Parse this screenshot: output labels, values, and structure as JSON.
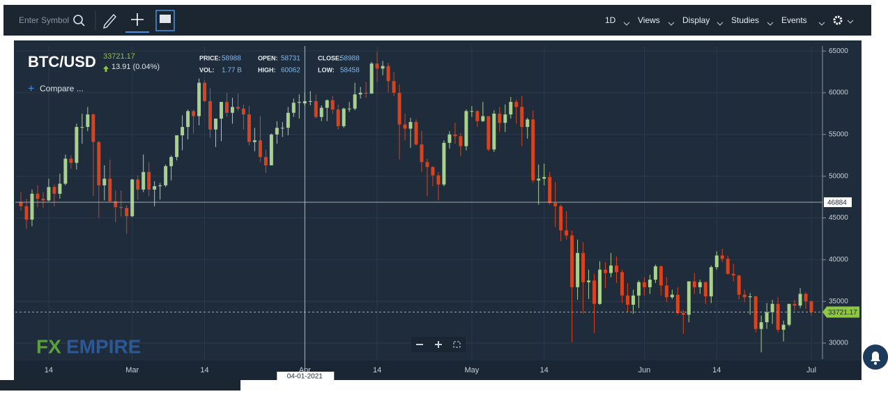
{
  "toolbar": {
    "search_placeholder": "Enter Symbol",
    "menus": [
      "1D",
      "Views",
      "Display",
      "Studies",
      "Events"
    ]
  },
  "chart_data": {
    "type": "candlestick",
    "title": "BTC/USD",
    "last_price": 33721.17,
    "change": "13.91 (0.04%)",
    "compare": "Compare ...",
    "logo": {
      "fx": "FX",
      "empire": "EMPIRE"
    },
    "info": [
      {
        "label": "PRICE:",
        "value": 58988
      },
      {
        "label": "VOL:",
        "value": "1.77 B"
      },
      {
        "label": "OPEN:",
        "value": 58731
      },
      {
        "label": "HIGH:",
        "value": 60062
      },
      {
        "label": "CLOSE:",
        "value": 58988
      },
      {
        "label": "LOW:",
        "value": 58458
      }
    ],
    "crosshair": {
      "x": "04-01-2021",
      "y": 46884
    },
    "up_color": "#a9d18e",
    "down_color": "#d8431f",
    "grid": true,
    "xlim": [
      "2021-02-08",
      "2021-07-03"
    ],
    "xticks": [
      {
        "value": "2021-02-14",
        "label": "14"
      },
      {
        "value": "2021-03-01",
        "label": "Mar"
      },
      {
        "value": "2021-03-14",
        "label": "14"
      },
      {
        "value": "2021-04-01",
        "label": "Apr"
      },
      {
        "value": "2021-04-14",
        "label": "14"
      },
      {
        "value": "2021-05-01",
        "label": "May"
      },
      {
        "value": "2021-05-14",
        "label": "14"
      },
      {
        "value": "2021-06-01",
        "label": "Jun"
      },
      {
        "value": "2021-06-14",
        "label": "14"
      },
      {
        "value": "2021-07-01",
        "label": "Jul"
      }
    ],
    "ylim": [
      28080,
      65600
    ],
    "yticks": [
      30000,
      35000,
      40000,
      45000,
      50000,
      55000,
      60000,
      65000
    ],
    "x": [
      "2021-02-09",
      "2021-02-10",
      "2021-02-11",
      "2021-02-12",
      "2021-02-13",
      "2021-02-14",
      "2021-02-15",
      "2021-02-16",
      "2021-02-17",
      "2021-02-18",
      "2021-02-19",
      "2021-02-20",
      "2021-02-21",
      "2021-02-22",
      "2021-02-23",
      "2021-02-24",
      "2021-02-25",
      "2021-02-26",
      "2021-02-27",
      "2021-02-28",
      "2021-03-01",
      "2021-03-02",
      "2021-03-03",
      "2021-03-04",
      "2021-03-05",
      "2021-03-06",
      "2021-03-07",
      "2021-03-08",
      "2021-03-09",
      "2021-03-10",
      "2021-03-11",
      "2021-03-12",
      "2021-03-13",
      "2021-03-14",
      "2021-03-15",
      "2021-03-16",
      "2021-03-17",
      "2021-03-18",
      "2021-03-19",
      "2021-03-20",
      "2021-03-21",
      "2021-03-22",
      "2021-03-23",
      "2021-03-24",
      "2021-03-25",
      "2021-03-26",
      "2021-03-27",
      "2021-03-28",
      "2021-03-29",
      "2021-03-30",
      "2021-03-31",
      "2021-04-01",
      "2021-04-02",
      "2021-04-03",
      "2021-04-04",
      "2021-04-05",
      "2021-04-06",
      "2021-04-07",
      "2021-04-08",
      "2021-04-09",
      "2021-04-10",
      "2021-04-11",
      "2021-04-12",
      "2021-04-13",
      "2021-04-14",
      "2021-04-15",
      "2021-04-16",
      "2021-04-17",
      "2021-04-18",
      "2021-04-19",
      "2021-04-20",
      "2021-04-21",
      "2021-04-22",
      "2021-04-23",
      "2021-04-24",
      "2021-04-25",
      "2021-04-26",
      "2021-04-27",
      "2021-04-28",
      "2021-04-29",
      "2021-04-30",
      "2021-05-01",
      "2021-05-02",
      "2021-05-03",
      "2021-05-04",
      "2021-05-05",
      "2021-05-06",
      "2021-05-07",
      "2021-05-08",
      "2021-05-09",
      "2021-05-10",
      "2021-05-11",
      "2021-05-12",
      "2021-05-13",
      "2021-05-14",
      "2021-05-15",
      "2021-05-16",
      "2021-05-17",
      "2021-05-18",
      "2021-05-19",
      "2021-05-20",
      "2021-05-21",
      "2021-05-22",
      "2021-05-23",
      "2021-05-24",
      "2021-05-25",
      "2021-05-26",
      "2021-05-27",
      "2021-05-28",
      "2021-05-29",
      "2021-05-30",
      "2021-05-31",
      "2021-06-01",
      "2021-06-02",
      "2021-06-03",
      "2021-06-04",
      "2021-06-05",
      "2021-06-06",
      "2021-06-07",
      "2021-06-08",
      "2021-06-09",
      "2021-06-10",
      "2021-06-11",
      "2021-06-12",
      "2021-06-13",
      "2021-06-14",
      "2021-06-15",
      "2021-06-16",
      "2021-06-17",
      "2021-06-18",
      "2021-06-19",
      "2021-06-20",
      "2021-06-21",
      "2021-06-22",
      "2021-06-23",
      "2021-06-24",
      "2021-06-25",
      "2021-06-26",
      "2021-06-27",
      "2021-06-28",
      "2021-06-29",
      "2021-06-30",
      "2021-07-01"
    ],
    "candles": [
      [
        46900,
        48100,
        45900,
        46400
      ],
      [
        46400,
        47300,
        43700,
        44800
      ],
      [
        44800,
        48400,
        44000,
        47900
      ],
      [
        47900,
        48900,
        46300,
        47300
      ],
      [
        47300,
        48100,
        46200,
        47100
      ],
      [
        47100,
        49700,
        47000,
        48700
      ],
      [
        48700,
        49000,
        46400,
        47900
      ],
      [
        47900,
        50300,
        47300,
        49100
      ],
      [
        49100,
        52600,
        48900,
        52100
      ],
      [
        52100,
        52500,
        50900,
        51600
      ],
      [
        51600,
        56300,
        50800,
        55900
      ],
      [
        55900,
        57500,
        53900,
        55900
      ],
      [
        55900,
        58300,
        55400,
        57400
      ],
      [
        57400,
        57500,
        47600,
        54100
      ],
      [
        54100,
        54200,
        45000,
        48900
      ],
      [
        48900,
        51300,
        47100,
        49700
      ],
      [
        49700,
        52000,
        46900,
        47000
      ],
      [
        47000,
        48300,
        44500,
        46300
      ],
      [
        46300,
        48300,
        45200,
        46200
      ],
      [
        46200,
        46500,
        43100,
        45200
      ],
      [
        45200,
        49700,
        45100,
        49600
      ],
      [
        49600,
        50100,
        47200,
        48400
      ],
      [
        48400,
        52600,
        48100,
        50500
      ],
      [
        50500,
        51700,
        47600,
        48400
      ],
      [
        48400,
        49400,
        46400,
        48800
      ],
      [
        48800,
        49200,
        47200,
        48900
      ],
      [
        48900,
        51400,
        48700,
        51200
      ],
      [
        51200,
        52500,
        49500,
        52300
      ],
      [
        52300,
        54900,
        51900,
        54900
      ],
      [
        54900,
        57300,
        53100,
        55900
      ],
      [
        55900,
        58000,
        54400,
        57800
      ],
      [
        57800,
        58000,
        55100,
        57200
      ],
      [
        57200,
        61700,
        56100,
        61200
      ],
      [
        61200,
        61500,
        58900,
        59000
      ],
      [
        59000,
        60500,
        54600,
        55600
      ],
      [
        55600,
        56900,
        53500,
        56900
      ],
      [
        56900,
        58900,
        54200,
        58900
      ],
      [
        58900,
        60000,
        57100,
        57600
      ],
      [
        57600,
        59400,
        56300,
        58300
      ],
      [
        58300,
        59900,
        57800,
        58100
      ],
      [
        58100,
        58600,
        55600,
        57400
      ],
      [
        57400,
        58400,
        53700,
        54100
      ],
      [
        54100,
        55800,
        53000,
        54300
      ],
      [
        54300,
        57200,
        51700,
        52300
      ],
      [
        52300,
        53200,
        50400,
        51300
      ],
      [
        51300,
        55100,
        51300,
        55000
      ],
      [
        55000,
        56600,
        53900,
        55800
      ],
      [
        55800,
        56500,
        54700,
        55800
      ],
      [
        55800,
        58300,
        54900,
        57600
      ],
      [
        57600,
        59300,
        57100,
        58800
      ],
      [
        58800,
        59800,
        56900,
        58900
      ],
      [
        58731,
        60062,
        58458,
        58988
      ],
      [
        58988,
        60200,
        58500,
        59000
      ],
      [
        59000,
        59800,
        56900,
        57100
      ],
      [
        57100,
        58500,
        56600,
        58200
      ],
      [
        58200,
        59200,
        56600,
        59100
      ],
      [
        59100,
        59600,
        57500,
        58000
      ],
      [
        58000,
        58600,
        55600,
        56000
      ],
      [
        56000,
        58200,
        55800,
        58100
      ],
      [
        58100,
        58900,
        57700,
        58100
      ],
      [
        58100,
        61200,
        57900,
        59800
      ],
      [
        59800,
        60700,
        59300,
        60000
      ],
      [
        60000,
        61300,
        59400,
        59900
      ],
      [
        59900,
        63700,
        59900,
        63500
      ],
      [
        63500,
        64900,
        61300,
        62900
      ],
      [
        62900,
        63800,
        62100,
        63200
      ],
      [
        63200,
        63600,
        60000,
        61400
      ],
      [
        61400,
        62500,
        59600,
        60000
      ],
      [
        60000,
        61000,
        52000,
        56200
      ],
      [
        56200,
        57500,
        54300,
        55700
      ],
      [
        55700,
        57000,
        53400,
        56500
      ],
      [
        56500,
        56800,
        53700,
        53800
      ],
      [
        53800,
        55400,
        50500,
        51700
      ],
      [
        51700,
        52100,
        47600,
        51100
      ],
      [
        51100,
        51200,
        48800,
        50100
      ],
      [
        50100,
        50500,
        47100,
        49000
      ],
      [
        49000,
        54300,
        48800,
        54000
      ],
      [
        54000,
        55400,
        53300,
        55000
      ],
      [
        55000,
        56400,
        53900,
        54800
      ],
      [
        54800,
        55200,
        52400,
        53600
      ],
      [
        53600,
        58000,
        53100,
        57800
      ],
      [
        57800,
        58400,
        57100,
        57800
      ],
      [
        57800,
        57900,
        55900,
        56600
      ],
      [
        56600,
        58900,
        56500,
        57200
      ],
      [
        57200,
        57200,
        53000,
        53200
      ],
      [
        53200,
        57900,
        52900,
        57500
      ],
      [
        57500,
        58300,
        55300,
        56400
      ],
      [
        56400,
        58600,
        55300,
        57400
      ],
      [
        57400,
        59500,
        56900,
        58900
      ],
      [
        58900,
        59200,
        56300,
        58300
      ],
      [
        58300,
        59600,
        53600,
        55900
      ],
      [
        55900,
        57000,
        54500,
        56800
      ],
      [
        56800,
        57900,
        49200,
        49500
      ],
      [
        49500,
        51400,
        46600,
        49700
      ],
      [
        49700,
        51500,
        48900,
        49900
      ],
      [
        49900,
        50500,
        46600,
        46800
      ],
      [
        46800,
        49300,
        43900,
        46400
      ],
      [
        46400,
        46600,
        42200,
        43500
      ],
      [
        43500,
        45800,
        42400,
        42900
      ],
      [
        42900,
        43500,
        30100,
        36700
      ],
      [
        36700,
        42400,
        35200,
        40800
      ],
      [
        40800,
        42100,
        33500,
        37300
      ],
      [
        37300,
        38800,
        35300,
        37500
      ],
      [
        37500,
        38300,
        31200,
        34700
      ],
      [
        34700,
        39800,
        34600,
        38800
      ],
      [
        38800,
        39700,
        36600,
        38400
      ],
      [
        38400,
        40800,
        37900,
        39300
      ],
      [
        39300,
        40400,
        37200,
        38500
      ],
      [
        38500,
        38800,
        34800,
        35700
      ],
      [
        35700,
        37200,
        33700,
        34600
      ],
      [
        34600,
        36400,
        33500,
        35700
      ],
      [
        35700,
        37500,
        34200,
        37300
      ],
      [
        37300,
        37900,
        35700,
        36700
      ],
      [
        36700,
        38200,
        35900,
        37600
      ],
      [
        37600,
        39400,
        37200,
        39200
      ],
      [
        39200,
        39300,
        35700,
        36900
      ],
      [
        36900,
        37900,
        34900,
        35500
      ],
      [
        35500,
        36400,
        35300,
        35800
      ],
      [
        35800,
        36700,
        33400,
        33600
      ],
      [
        33600,
        34000,
        31100,
        33400
      ],
      [
        33400,
        37400,
        32500,
        37400
      ],
      [
        37400,
        38400,
        35900,
        36700
      ],
      [
        36700,
        37600,
        35900,
        37300
      ],
      [
        37300,
        37400,
        34700,
        35600
      ],
      [
        35600,
        39300,
        34800,
        39100
      ],
      [
        39100,
        41000,
        38800,
        40500
      ],
      [
        40500,
        41300,
        39700,
        40100
      ],
      [
        40100,
        40500,
        38200,
        38300
      ],
      [
        38300,
        39500,
        37400,
        38100
      ],
      [
        38100,
        38200,
        35200,
        35800
      ],
      [
        35800,
        36400,
        34900,
        35500
      ],
      [
        35500,
        36000,
        33400,
        35600
      ],
      [
        35600,
        35700,
        31300,
        31700
      ],
      [
        31700,
        33300,
        28900,
        32500
      ],
      [
        32500,
        34800,
        31700,
        33700
      ],
      [
        33700,
        35200,
        32300,
        34700
      ],
      [
        34700,
        35500,
        31300,
        31600
      ],
      [
        31600,
        32700,
        30200,
        32200
      ],
      [
        32200,
        34700,
        32000,
        34700
      ],
      [
        34700,
        35200,
        33900,
        34500
      ],
      [
        34500,
        36600,
        34200,
        35900
      ],
      [
        35900,
        36100,
        34100,
        35000
      ],
      [
        35000,
        35100,
        33300,
        33721.17
      ]
    ]
  }
}
